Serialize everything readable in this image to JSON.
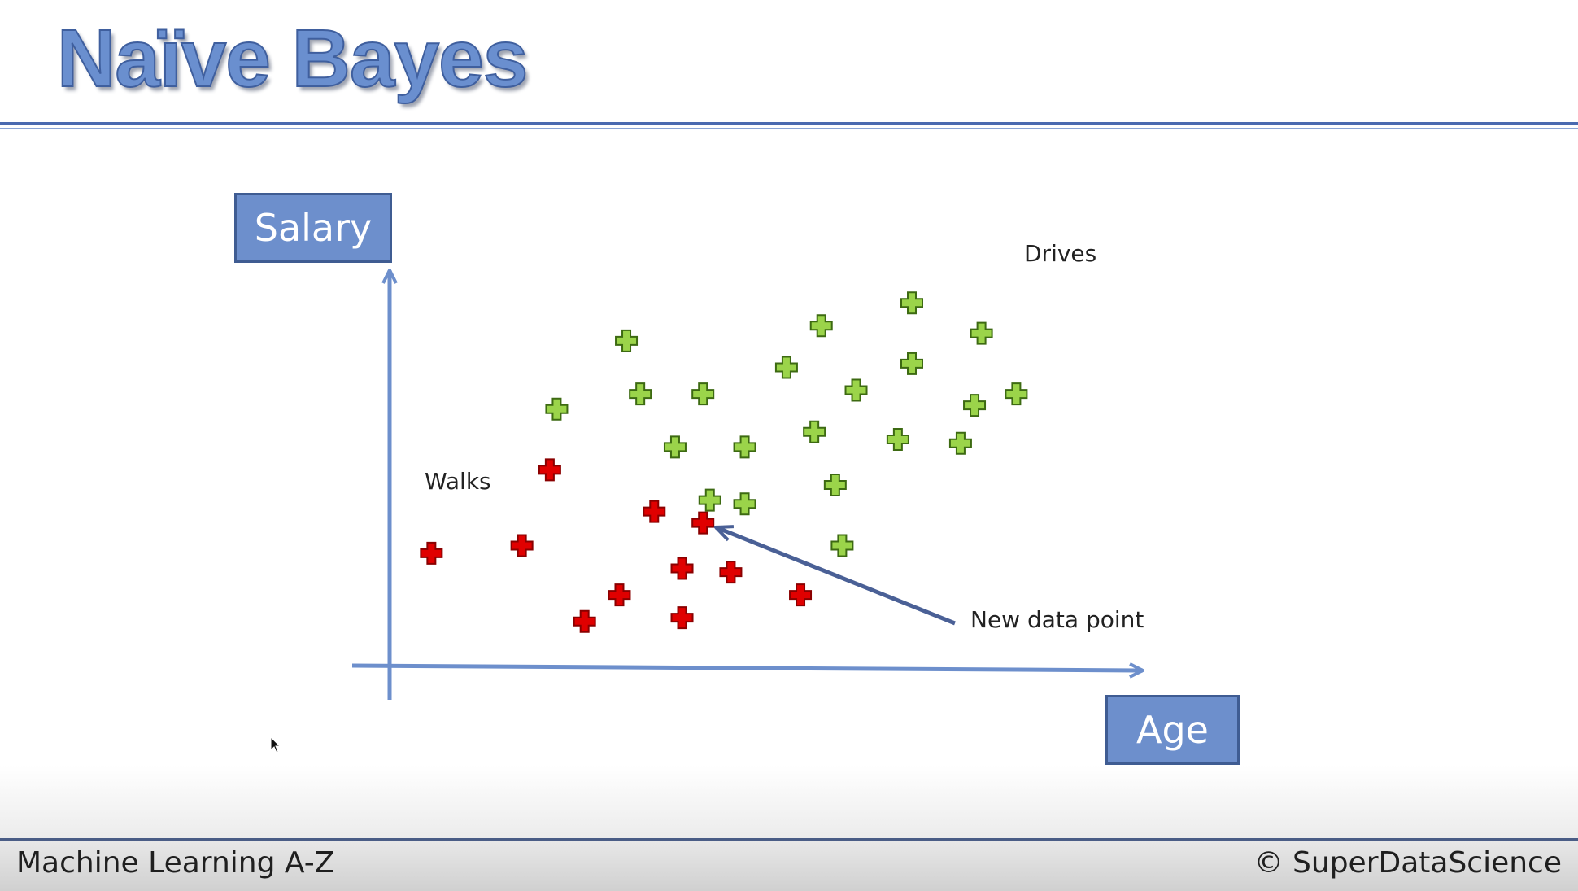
{
  "slide": {
    "title": "Naïve Bayes",
    "footer_left": "Machine Learning A-Z",
    "footer_right": "© SuperDataScience"
  },
  "chart_data": {
    "type": "scatter",
    "title": "",
    "xlabel": "Age",
    "ylabel": "Salary",
    "xlim": [
      0,
      100
    ],
    "ylim": [
      0,
      100
    ],
    "series": [
      {
        "name": "Walks",
        "color": "#e00000",
        "marker": "plus",
        "points": [
          [
            6,
            29
          ],
          [
            19,
            31
          ],
          [
            23,
            51
          ],
          [
            28,
            11
          ],
          [
            33,
            18
          ],
          [
            38,
            40
          ],
          [
            42,
            25
          ],
          [
            42,
            12
          ],
          [
            45,
            37
          ],
          [
            49,
            24
          ],
          [
            59,
            18
          ]
        ]
      },
      {
        "name": "Drives",
        "color": "#9bd44a",
        "marker": "plus",
        "points": [
          [
            24,
            67
          ],
          [
            34,
            85
          ],
          [
            36,
            71
          ],
          [
            41,
            57
          ],
          [
            45,
            71
          ],
          [
            46,
            43
          ],
          [
            51,
            42
          ],
          [
            51,
            57
          ],
          [
            57,
            78
          ],
          [
            61,
            61
          ],
          [
            62,
            89
          ],
          [
            64,
            47
          ],
          [
            65,
            31
          ],
          [
            67,
            72
          ],
          [
            73,
            59
          ],
          [
            75,
            95
          ],
          [
            75,
            79
          ],
          [
            82,
            58
          ],
          [
            84,
            68
          ],
          [
            85,
            87
          ],
          [
            90,
            71
          ]
        ]
      }
    ],
    "annotations": [
      {
        "text": "Walks"
      },
      {
        "text": "Drives"
      },
      {
        "text": "New data point",
        "target": [
          40,
          37
        ]
      }
    ]
  }
}
